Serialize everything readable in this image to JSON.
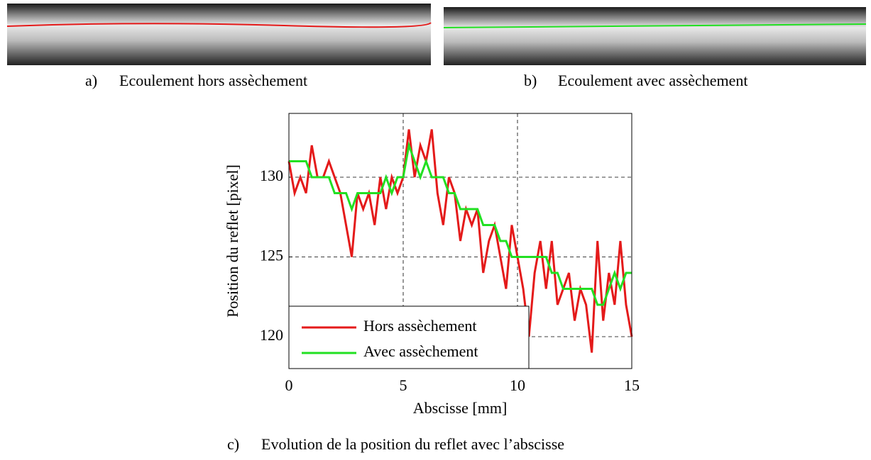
{
  "captions": [
    {
      "label": "a)",
      "text": "Ecoulement hors assèchement"
    },
    {
      "label": "b)",
      "text": "Ecoulement avec assèchement"
    },
    {
      "label": "c)",
      "text": "Evolution de la position du reflet avec l’abscisse"
    }
  ],
  "chart_data": {
    "type": "line",
    "xlabel": "Abscisse [mm]",
    "ylabel": "Position du reflet [pixel]",
    "x": [
      0,
      0.25,
      0.5,
      0.75,
      1,
      1.25,
      1.5,
      1.75,
      2,
      2.25,
      2.5,
      2.75,
      3,
      3.25,
      3.5,
      3.75,
      4,
      4.25,
      4.5,
      4.75,
      5,
      5.25,
      5.5,
      5.75,
      6,
      6.25,
      6.5,
      6.75,
      7,
      7.25,
      7.5,
      7.75,
      8,
      8.25,
      8.5,
      8.75,
      9,
      9.25,
      9.5,
      9.75,
      10,
      10.25,
      10.5,
      10.75,
      11,
      11.25,
      11.5,
      11.75,
      12,
      12.25,
      12.5,
      12.75,
      13,
      13.25,
      13.5,
      13.75,
      14,
      14.25,
      14.5,
      14.75,
      15
    ],
    "series": [
      {
        "name": "Hors assèchement",
        "color": "#e41a1a",
        "values": [
          131,
          129,
          130,
          129,
          132,
          130,
          130,
          131,
          130,
          129,
          127,
          125,
          129,
          128,
          129,
          127,
          130,
          128,
          130,
          129,
          130,
          133,
          130,
          132,
          131,
          133,
          129,
          127,
          130,
          129,
          126,
          128,
          127,
          128,
          124,
          126,
          127,
          125,
          123,
          127,
          125,
          123,
          120,
          124,
          126,
          123,
          126,
          122,
          123,
          124,
          121,
          123,
          122,
          119,
          126,
          121,
          124,
          122,
          126,
          122,
          120
        ]
      },
      {
        "name": "Avec assèchement",
        "color": "#22e022",
        "values": [
          131,
          131,
          131,
          131,
          130,
          130,
          130,
          130,
          129,
          129,
          129,
          128,
          129,
          129,
          129,
          129,
          129,
          130,
          129,
          130,
          130,
          132,
          131,
          130,
          131,
          130,
          130,
          130,
          129,
          129,
          128,
          128,
          128,
          128,
          127,
          127,
          127,
          126,
          126,
          125,
          125,
          125,
          125,
          125,
          125,
          125,
          124,
          124,
          123,
          123,
          123,
          123,
          123,
          123,
          122,
          122,
          123,
          124,
          123,
          124,
          124
        ]
      }
    ],
    "xlim": [
      0,
      15
    ],
    "ylim": [
      118,
      134
    ],
    "xticks": [
      0,
      5,
      10,
      15
    ],
    "yticks": [
      120,
      125,
      130
    ],
    "grid": true,
    "legend": "lower left"
  }
}
